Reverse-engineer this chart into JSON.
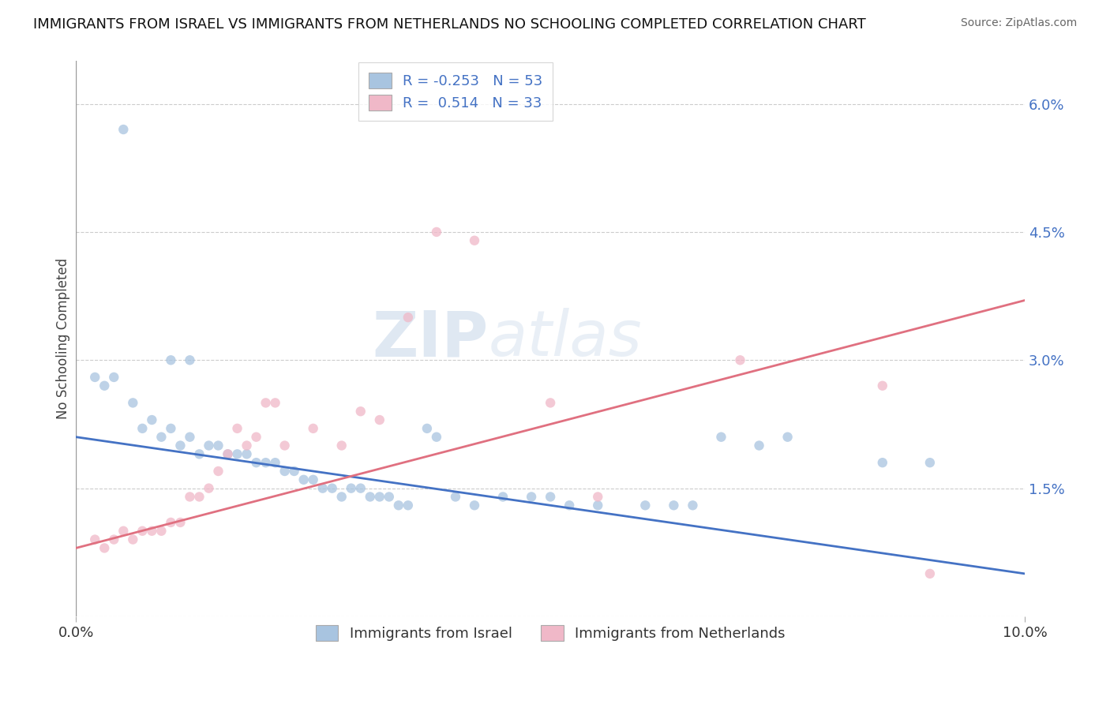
{
  "title": "IMMIGRANTS FROM ISRAEL VS IMMIGRANTS FROM NETHERLANDS NO SCHOOLING COMPLETED CORRELATION CHART",
  "source": "Source: ZipAtlas.com",
  "ylabel": "No Schooling Completed",
  "xlim": [
    0.0,
    0.1
  ],
  "ylim": [
    0.0,
    0.065
  ],
  "ytick_vals": [
    0.0,
    0.015,
    0.03,
    0.045,
    0.06
  ],
  "ytick_labels": [
    "",
    "1.5%",
    "3.0%",
    "4.5%",
    "6.0%"
  ],
  "xtick_vals": [
    0.0,
    0.1
  ],
  "xtick_labels": [
    "0.0%",
    "10.0%"
  ],
  "legend_label_bottom": [
    "Immigrants from Israel",
    "Immigrants from Netherlands"
  ],
  "israel_scatter_color": "#a8c4e0",
  "netherlands_scatter_color": "#f0b8c8",
  "israel_line_color": "#4472c4",
  "netherlands_line_color": "#e07080",
  "background_color": "#ffffff",
  "watermark_text": "ZIP",
  "watermark_text2": "atlas",
  "tick_color": "#4472c4",
  "israel_line_start_y": 0.021,
  "israel_line_end_y": 0.005,
  "netherlands_line_start_y": 0.008,
  "netherlands_line_end_y": 0.037,
  "israel_points": [
    [
      0.005,
      0.057
    ],
    [
      0.01,
      0.03
    ],
    [
      0.012,
      0.03
    ],
    [
      0.002,
      0.028
    ],
    [
      0.003,
      0.027
    ],
    [
      0.004,
      0.028
    ],
    [
      0.006,
      0.025
    ],
    [
      0.007,
      0.022
    ],
    [
      0.008,
      0.023
    ],
    [
      0.009,
      0.021
    ],
    [
      0.01,
      0.022
    ],
    [
      0.011,
      0.02
    ],
    [
      0.012,
      0.021
    ],
    [
      0.013,
      0.019
    ],
    [
      0.014,
      0.02
    ],
    [
      0.015,
      0.02
    ],
    [
      0.016,
      0.019
    ],
    [
      0.017,
      0.019
    ],
    [
      0.018,
      0.019
    ],
    [
      0.019,
      0.018
    ],
    [
      0.02,
      0.018
    ],
    [
      0.021,
      0.018
    ],
    [
      0.022,
      0.017
    ],
    [
      0.023,
      0.017
    ],
    [
      0.024,
      0.016
    ],
    [
      0.025,
      0.016
    ],
    [
      0.026,
      0.015
    ],
    [
      0.027,
      0.015
    ],
    [
      0.028,
      0.014
    ],
    [
      0.029,
      0.015
    ],
    [
      0.03,
      0.015
    ],
    [
      0.031,
      0.014
    ],
    [
      0.032,
      0.014
    ],
    [
      0.033,
      0.014
    ],
    [
      0.034,
      0.013
    ],
    [
      0.035,
      0.013
    ],
    [
      0.037,
      0.022
    ],
    [
      0.038,
      0.021
    ],
    [
      0.04,
      0.014
    ],
    [
      0.042,
      0.013
    ],
    [
      0.045,
      0.014
    ],
    [
      0.048,
      0.014
    ],
    [
      0.05,
      0.014
    ],
    [
      0.052,
      0.013
    ],
    [
      0.055,
      0.013
    ],
    [
      0.06,
      0.013
    ],
    [
      0.063,
      0.013
    ],
    [
      0.065,
      0.013
    ],
    [
      0.068,
      0.021
    ],
    [
      0.072,
      0.02
    ],
    [
      0.075,
      0.021
    ],
    [
      0.085,
      0.018
    ],
    [
      0.09,
      0.018
    ]
  ],
  "netherlands_points": [
    [
      0.002,
      0.009
    ],
    [
      0.003,
      0.008
    ],
    [
      0.004,
      0.009
    ],
    [
      0.005,
      0.01
    ],
    [
      0.006,
      0.009
    ],
    [
      0.007,
      0.01
    ],
    [
      0.008,
      0.01
    ],
    [
      0.009,
      0.01
    ],
    [
      0.01,
      0.011
    ],
    [
      0.011,
      0.011
    ],
    [
      0.012,
      0.014
    ],
    [
      0.013,
      0.014
    ],
    [
      0.014,
      0.015
    ],
    [
      0.015,
      0.017
    ],
    [
      0.016,
      0.019
    ],
    [
      0.017,
      0.022
    ],
    [
      0.018,
      0.02
    ],
    [
      0.019,
      0.021
    ],
    [
      0.02,
      0.025
    ],
    [
      0.021,
      0.025
    ],
    [
      0.022,
      0.02
    ],
    [
      0.025,
      0.022
    ],
    [
      0.028,
      0.02
    ],
    [
      0.03,
      0.024
    ],
    [
      0.032,
      0.023
    ],
    [
      0.035,
      0.035
    ],
    [
      0.038,
      0.045
    ],
    [
      0.042,
      0.044
    ],
    [
      0.05,
      0.025
    ],
    [
      0.055,
      0.014
    ],
    [
      0.07,
      0.03
    ],
    [
      0.085,
      0.027
    ],
    [
      0.09,
      0.005
    ]
  ]
}
